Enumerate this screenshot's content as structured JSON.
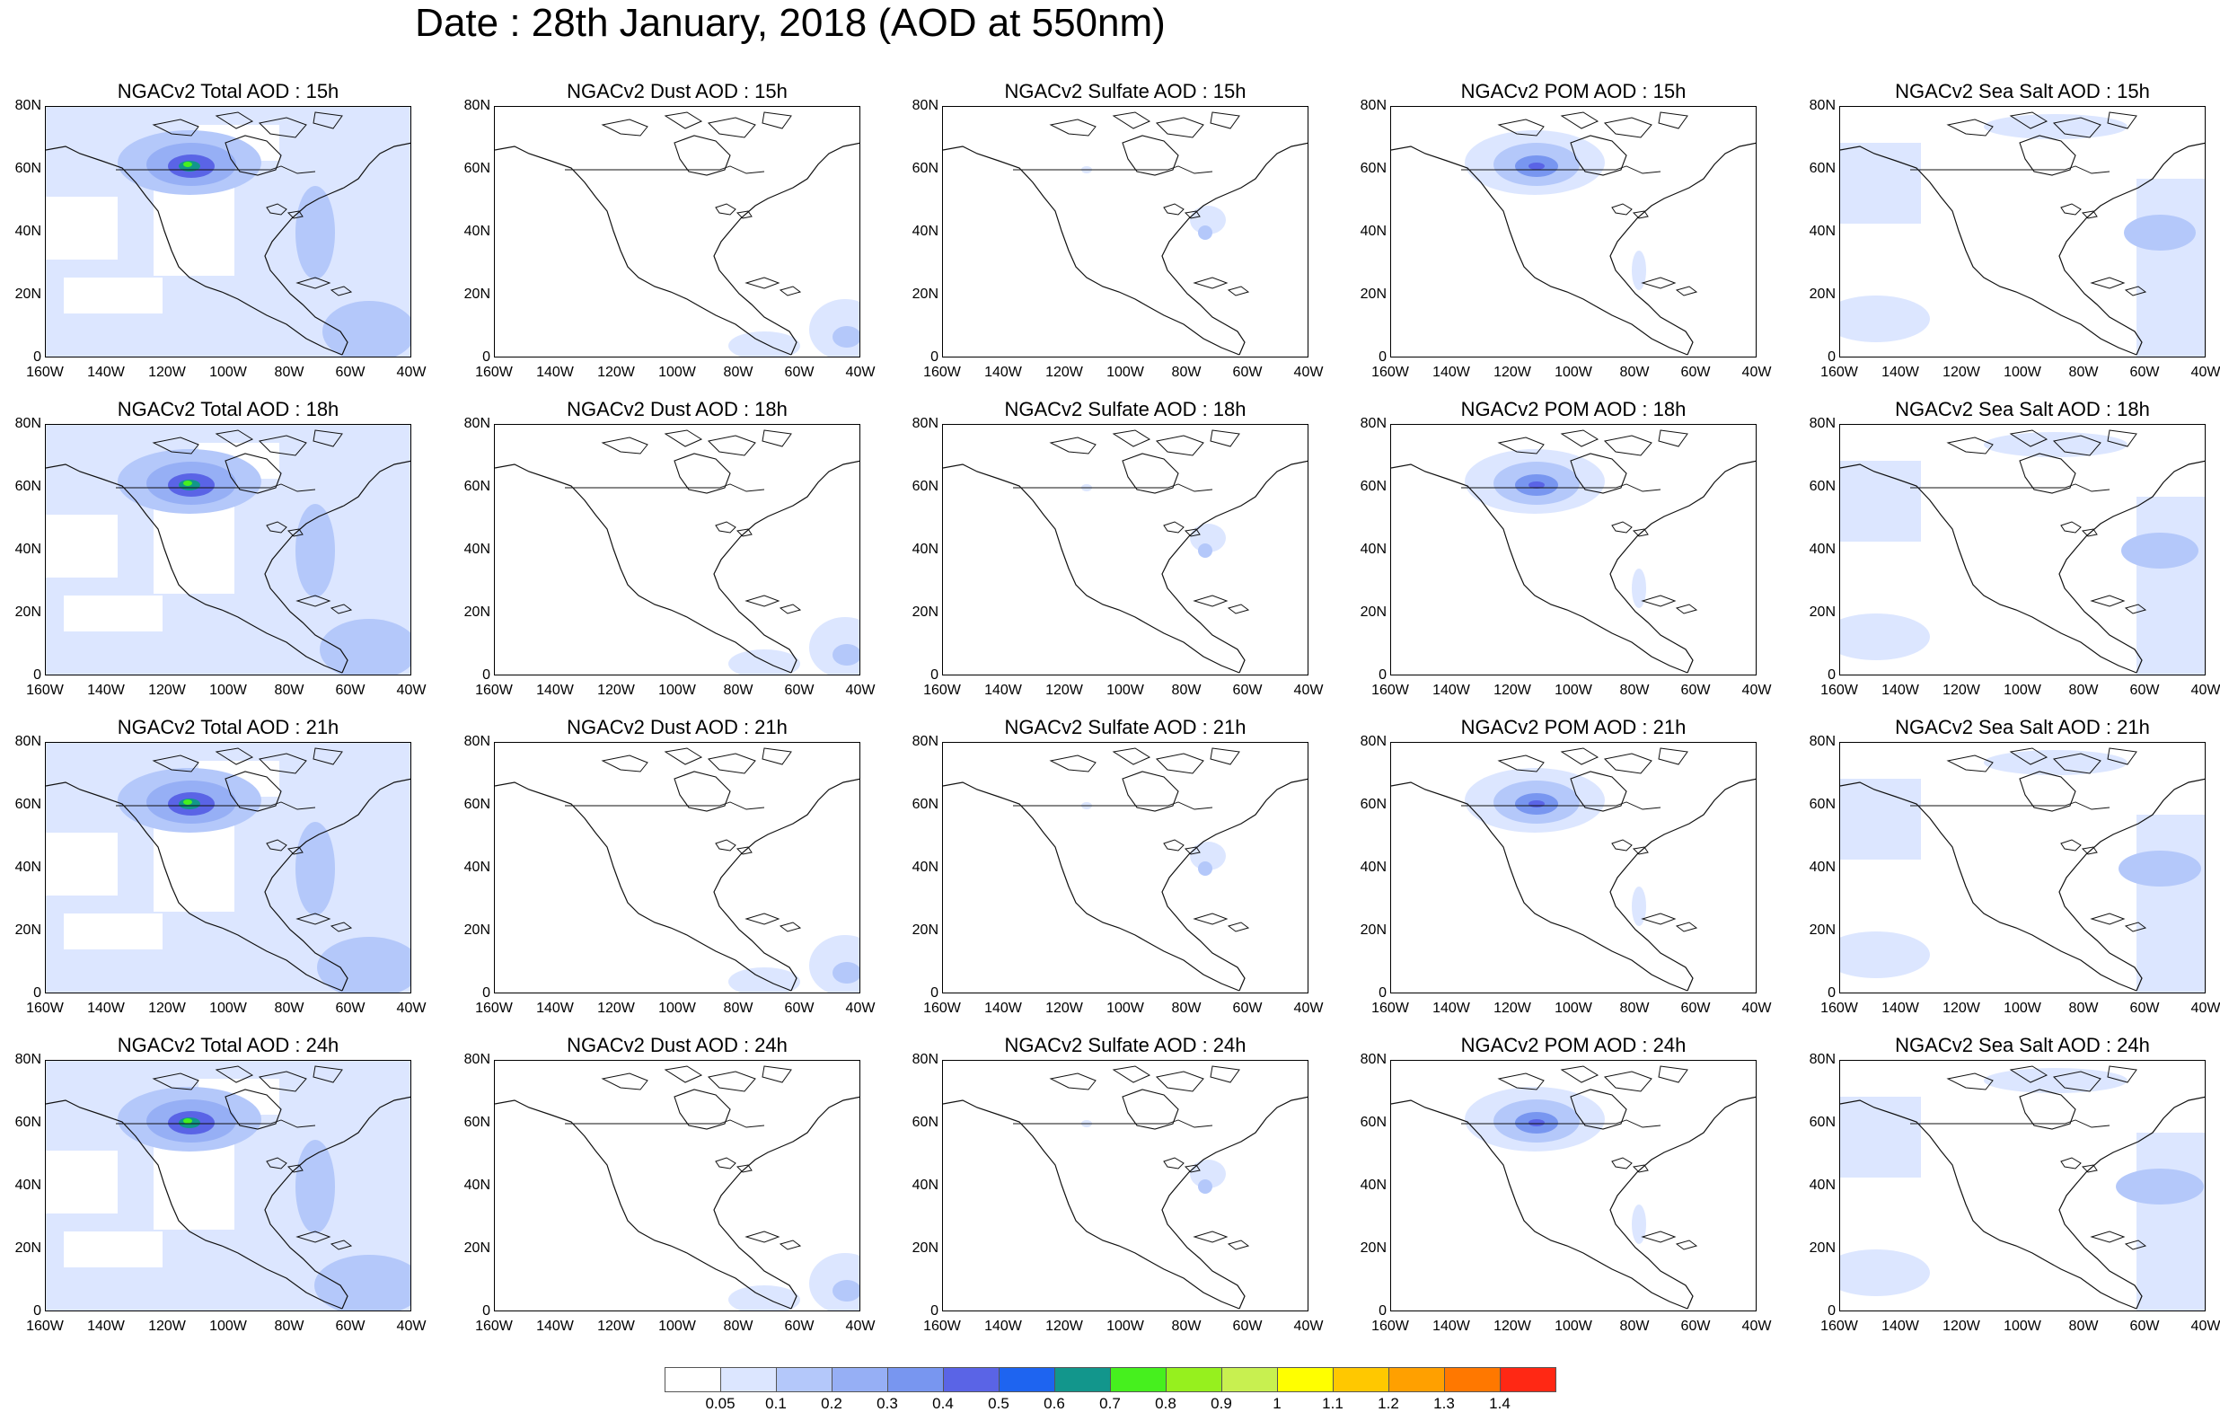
{
  "title": "Date : 28th January, 2018 (AOD at 550nm)",
  "panels": [
    [
      "NGACv2 Total AOD : 15h",
      "NGACv2 Dust AOD : 15h",
      "NGACv2 Sulfate AOD : 15h",
      "NGACv2 POM AOD : 15h",
      "NGACv2 Sea Salt AOD : 15h"
    ],
    [
      "NGACv2 Total AOD : 18h",
      "NGACv2 Dust AOD : 18h",
      "NGACv2 Sulfate AOD : 18h",
      "NGACv2 POM AOD : 18h",
      "NGACv2 Sea Salt AOD : 18h"
    ],
    [
      "NGACv2 Total AOD : 21h",
      "NGACv2 Dust AOD : 21h",
      "NGACv2 Sulfate AOD : 21h",
      "NGACv2 POM AOD : 21h",
      "NGACv2 Sea Salt AOD : 21h"
    ],
    [
      "NGACv2 Total AOD : 24h",
      "NGACv2 Dust AOD : 24h",
      "NGACv2 Sulfate AOD : 24h",
      "NGACv2 POM AOD : 24h",
      "NGACv2 Sea Salt  AOD : 24h"
    ]
  ],
  "y_ticks": [
    "80N",
    "60N",
    "40N",
    "20N",
    "0"
  ],
  "x_ticks": [
    "160W",
    "140W",
    "120W",
    "100W",
    "80W",
    "60W",
    "40W"
  ],
  "colorbar": {
    "labels": [
      "0.05",
      "0.1",
      "0.2",
      "0.3",
      "0.4",
      "0.5",
      "0.6",
      "0.7",
      "0.8",
      "0.9",
      "1",
      "1.1",
      "1.2",
      "1.3",
      "1.4"
    ],
    "colors": [
      "#ffffff",
      "#dce6ff",
      "#b4c8fa",
      "#96aff5",
      "#7896f0",
      "#5a64e6",
      "#1e64f0",
      "#12968c",
      "#46f01e",
      "#96f01e",
      "#c8f050",
      "#ffff00",
      "#ffc800",
      "#ffa000",
      "#ff7800",
      "#ff2814"
    ]
  },
  "species_type": [
    "total",
    "dust",
    "sulfate",
    "pom",
    "seasalt"
  ]
}
